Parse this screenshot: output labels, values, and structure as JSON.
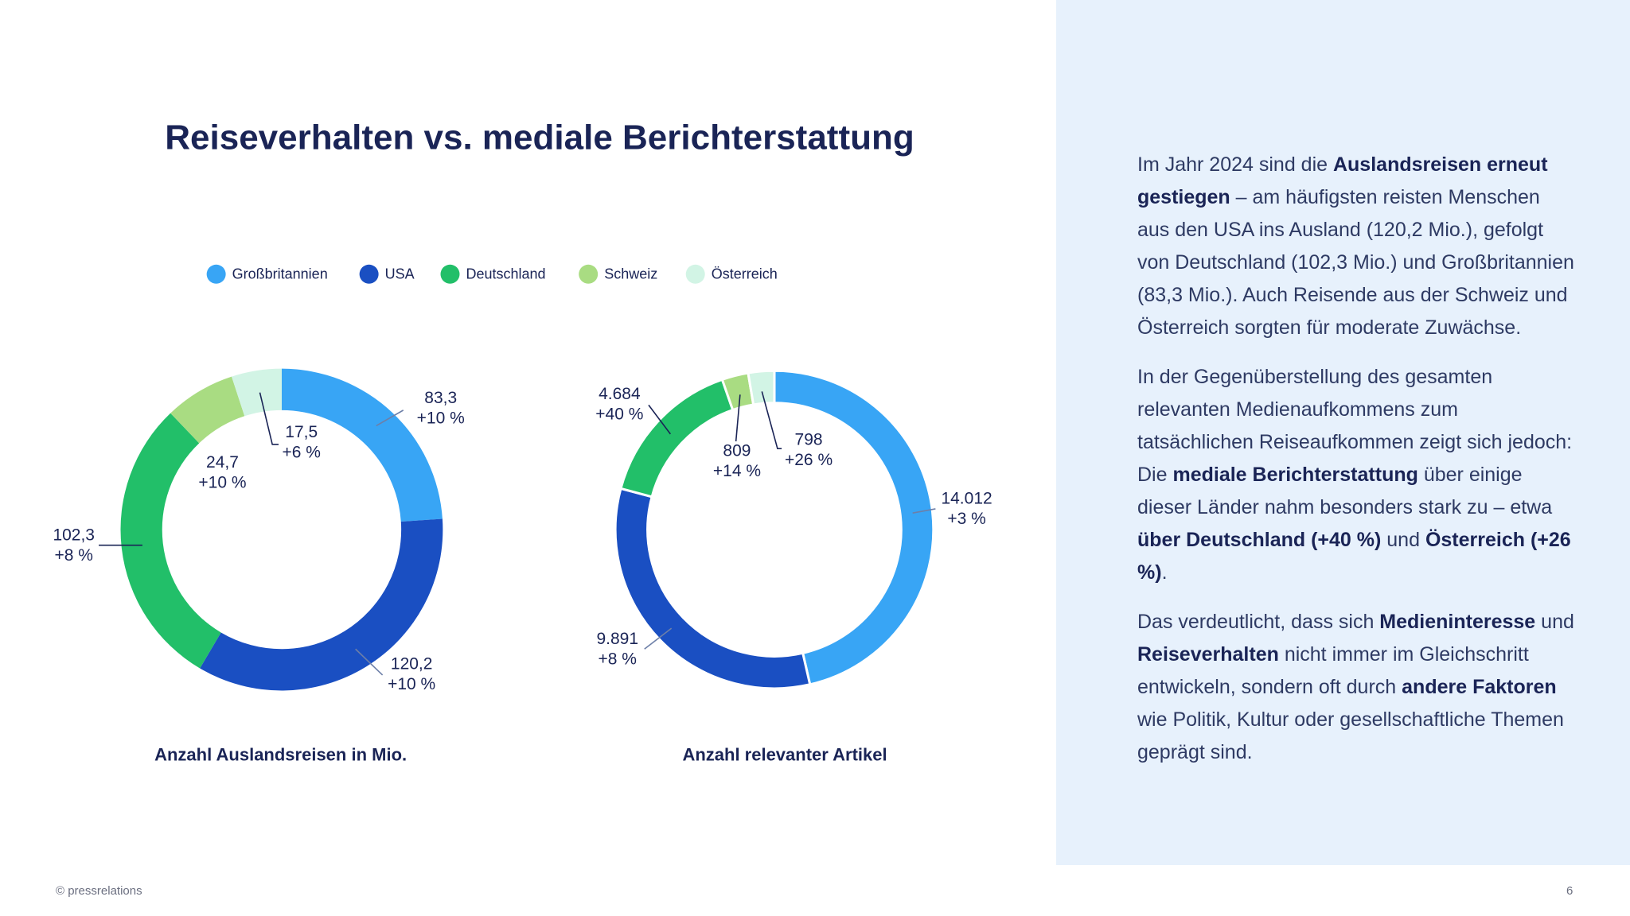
{
  "title": "Reiseverhalten vs. mediale Berichterstattung",
  "legend": {
    "categories": [
      "Großbritannien",
      "USA",
      "Deutschland",
      "Schweiz",
      "Österreich"
    ],
    "colors": [
      "#38a5f5",
      "#1a4fc2",
      "#22bf69",
      "#a9dc82",
      "#d2f4e5"
    ]
  },
  "chart_data": [
    {
      "type": "donut",
      "title": "Anzahl Auslandsreisen in Mio.",
      "values": [
        83.3,
        120.2,
        102.3,
        24.7,
        17.5
      ],
      "value_labels": [
        "83,3",
        "120,2",
        "102,3",
        "24,7",
        "17,5"
      ],
      "annotations": [
        "+10 %",
        "+10 %",
        "+8 %",
        "+10 %",
        "+6 %"
      ]
    },
    {
      "type": "donut",
      "title": "Anzahl relevanter Artikel",
      "values": [
        14012,
        9891,
        4684,
        809,
        798
      ],
      "value_labels": [
        "14.012",
        "9.891",
        "4.684",
        "809",
        "798"
      ],
      "annotations": [
        "+3 %",
        "+8 %",
        "+40 %",
        "+14 %",
        "+26 %"
      ]
    }
  ],
  "panel": {
    "paragraphs": [
      [
        {
          "text": "Im Jahr 2024 sind die ",
          "bold": false
        },
        {
          "text": "Auslandsreisen erneut gestiegen",
          "bold": true
        },
        {
          "text": " – am häufigsten reisten Menschen aus den USA ins Ausland (120,2 Mio.), gefolgt von Deutschland (102,3 Mio.) und Großbritannien (83,3 Mio.). Auch Reisende aus der Schweiz und Österreich sorgten für moderate Zuwächse.",
          "bold": false
        }
      ],
      [
        {
          "text": "In der Gegenüberstellung des gesamten relevanten Medienaufkommens zum tatsächlichen Reiseaufkommen zeigt sich jedoch: Die ",
          "bold": false
        },
        {
          "text": "mediale Berichterstattung",
          "bold": true
        },
        {
          "text": " über einige dieser Länder nahm besonders stark zu – etwa ",
          "bold": false
        },
        {
          "text": "über Deutschland (+40 %)",
          "bold": true
        },
        {
          "text": " und ",
          "bold": false
        },
        {
          "text": "Österreich (+26 %)",
          "bold": true
        },
        {
          "text": ".",
          "bold": false
        }
      ],
      [
        {
          "text": "Das verdeutlicht, dass sich ",
          "bold": false
        },
        {
          "text": "Medieninteresse",
          "bold": true
        },
        {
          "text": " und ",
          "bold": false
        },
        {
          "text": "Reiseverhalten",
          "bold": true
        },
        {
          "text": " nicht immer im Gleichschritt entwickeln, sondern oft durch ",
          "bold": false
        },
        {
          "text": "andere Faktoren",
          "bold": true
        },
        {
          "text": " wie Politik, Kultur oder gesellschaftliche Themen geprägt sind.",
          "bold": false
        }
      ]
    ]
  },
  "footer": {
    "left": "© pressrelations",
    "page": "6"
  }
}
